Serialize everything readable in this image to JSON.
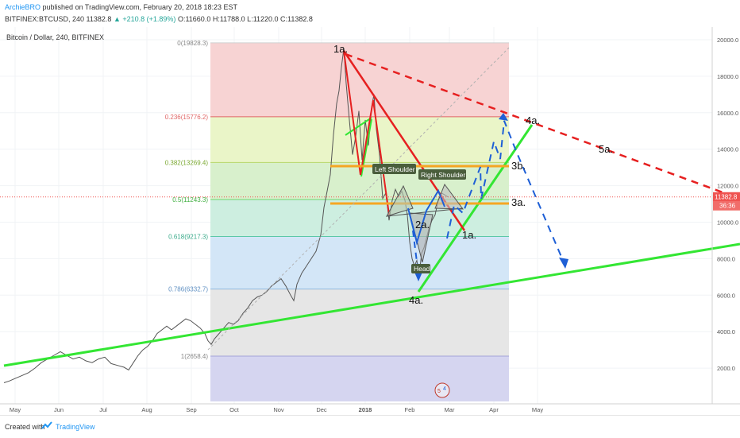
{
  "header": {
    "author": "ArchieBRO",
    "published_text": "published on TradingView.com, February 20, 2018 18:23 EST",
    "symbol_line": "BITFINEX:BTCUSD, 240",
    "last": "11382.8",
    "change": "+210.8 (+1.89%)",
    "ohlc": "O:11660.0  H:11788.0  L:11220.0  C:11382.8"
  },
  "chart_title": "Bitcoin / Dollar, 240, BITFINEX",
  "footer": {
    "created": "Created with",
    "brand": "TradingView"
  },
  "colors": {
    "green_trend": "#33e633",
    "red_trend": "#e62020",
    "fib_line_orange": "#f5a623",
    "wave_blue": "#1e5fd6",
    "price_badge": "#ef5350"
  },
  "chart_data": {
    "type": "line",
    "ylim": [
      0,
      21000
    ],
    "y_ticks": [
      "20000.0",
      "18000.0",
      "16000.0",
      "14000.0",
      "12000.0",
      "10000.0",
      "8000.0",
      "6000.0",
      "4000.0",
      "2000.0"
    ],
    "x_ticks": [
      "May",
      "Jun",
      "Jul",
      "Aug",
      "Sep",
      "Oct",
      "Nov",
      "Dec",
      "2018",
      "Feb",
      "Mar",
      "Apr",
      "May"
    ],
    "last_price": "11382.8",
    "countdown": "36:36",
    "fib_levels": [
      {
        "label": "0(19828.3)",
        "price": 19828.3,
        "line": "#d0d0d0",
        "fill": "#f7d3d3",
        "text": "#888888"
      },
      {
        "label": "0.236(15776.2)",
        "price": 15776.2,
        "line": "#e06666",
        "fill": "#eaf5c8",
        "text": "#e06666"
      },
      {
        "label": "0.382(13269.4)",
        "price": 13269.4,
        "line": "#b8d86b",
        "fill": "#d8f0cc",
        "text": "#7aa830"
      },
      {
        "label": "0.5(11243.3)",
        "price": 11243.3,
        "line": "#6fd66f",
        "fill": "#cdeee0",
        "text": "#3fae3f"
      },
      {
        "label": "0.618(9217.3)",
        "price": 9217.3,
        "line": "#5cc8a8",
        "fill": "#d3e6f7",
        "text": "#3aaa8a"
      },
      {
        "label": "0.786(6332.7)",
        "price": 6332.7,
        "line": "#8fb8df",
        "fill": "#e6e6e6",
        "text": "#5e8fc2"
      },
      {
        "label": "1(2658.4)",
        "price": 2658.4,
        "line": "#a2a2d8",
        "fill": "#d5d5f0",
        "text": "#888888"
      }
    ],
    "price_series": [
      [
        5.0,
        1200
      ],
      [
        12,
        1300
      ],
      [
        20,
        1450
      ],
      [
        28,
        1600
      ],
      [
        36,
        1750
      ],
      [
        44,
        2000
      ],
      [
        52,
        2300
      ],
      [
        60,
        2500
      ],
      [
        68,
        2700
      ],
      [
        76,
        2900
      ],
      [
        84,
        2700
      ],
      [
        92,
        2500
      ],
      [
        100,
        2600
      ],
      [
        108,
        2400
      ],
      [
        116,
        2300
      ],
      [
        124,
        2500
      ],
      [
        132,
        2600
      ],
      [
        140,
        2250
      ],
      [
        148,
        2150
      ],
      [
        156,
        2050
      ],
      [
        162,
        1900
      ],
      [
        168,
        2300
      ],
      [
        174,
        2700
      ],
      [
        180,
        3000
      ],
      [
        186,
        3200
      ],
      [
        192,
        3500
      ],
      [
        198,
        3900
      ],
      [
        204,
        4100
      ],
      [
        210,
        4300
      ],
      [
        216,
        4100
      ],
      [
        222,
        4300
      ],
      [
        228,
        4500
      ],
      [
        234,
        4700
      ],
      [
        240,
        4600
      ],
      [
        246,
        4400
      ],
      [
        252,
        4200
      ],
      [
        258,
        3900
      ],
      [
        262,
        3500
      ],
      [
        266,
        3300
      ],
      [
        270,
        3600
      ],
      [
        276,
        3900
      ],
      [
        282,
        4200
      ],
      [
        288,
        4500
      ],
      [
        294,
        4400
      ],
      [
        300,
        4600
      ],
      [
        306,
        5000
      ],
      [
        312,
        5300
      ],
      [
        318,
        5700
      ],
      [
        324,
        5900
      ],
      [
        330,
        6000
      ],
      [
        336,
        6200
      ],
      [
        342,
        6500
      ],
      [
        348,
        6700
      ],
      [
        354,
        6900
      ],
      [
        360,
        6500
      ],
      [
        366,
        6000
      ],
      [
        370,
        5700
      ],
      [
        374,
        6600
      ],
      [
        380,
        7200
      ],
      [
        386,
        7600
      ],
      [
        392,
        8000
      ],
      [
        398,
        8400
      ],
      [
        404,
        9300
      ],
      [
        408,
        10800
      ],
      [
        412,
        11700
      ],
      [
        416,
        12600
      ],
      [
        420,
        14800
      ],
      [
        424,
        16500
      ],
      [
        427,
        17200
      ],
      [
        430,
        18500
      ],
      [
        433,
        19500
      ],
      [
        436,
        17600
      ],
      [
        440,
        15600
      ],
      [
        444,
        13700
      ],
      [
        448,
        14700
      ],
      [
        452,
        16100
      ],
      [
        456,
        13400
      ],
      [
        460,
        15600
      ],
      [
        464,
        14200
      ],
      [
        468,
        16300
      ],
      [
        471,
        17000
      ],
      [
        474,
        15100
      ],
      [
        478,
        13700
      ],
      [
        482,
        11300
      ],
      [
        486,
        11600
      ],
      [
        490,
        10100
      ],
      [
        494,
        11200
      ],
      [
        498,
        11800
      ],
      [
        502,
        11400
      ],
      [
        506,
        11700
      ],
      [
        510,
        11200
      ],
      [
        513,
        10400
      ],
      [
        516,
        8900
      ],
      [
        519,
        8000
      ],
      [
        522,
        7600
      ],
      [
        525,
        7900
      ],
      [
        528,
        7100
      ],
      [
        531,
        8300
      ],
      [
        534,
        8600
      ],
      [
        537,
        9100
      ],
      [
        540,
        9600
      ],
      [
        544,
        10100
      ],
      [
        548,
        10400
      ],
      [
        552,
        11200
      ],
      [
        556,
        11600
      ],
      [
        560,
        11500
      ],
      [
        564,
        11383
      ]
    ],
    "annotations": [
      "1a.",
      "1a.",
      "2a.",
      "3a.",
      "3b.",
      "4a.",
      "4a.",
      "5a.",
      "Left Shoulder",
      "Right Shoulder",
      "Head"
    ],
    "event_badge": [
      "5",
      "4"
    ]
  }
}
